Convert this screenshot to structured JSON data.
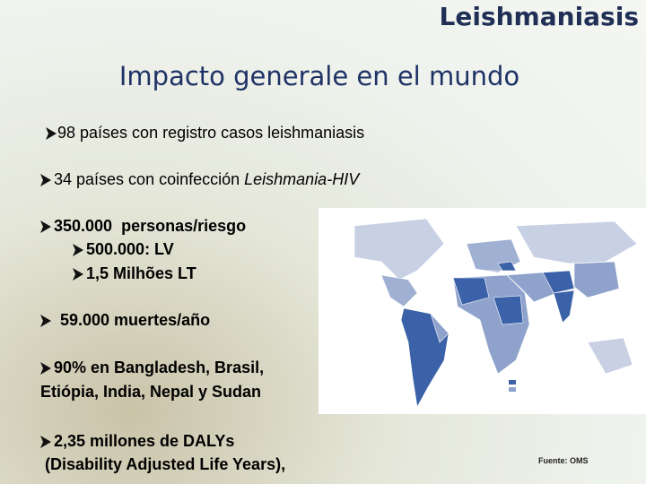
{
  "header": {
    "title": "Leishmaniasis",
    "subtitle": "Impacto generale en el mundo"
  },
  "bullets": [
    {
      "text": "98 países con registro casos leishmaniasis"
    },
    {
      "text": "34 países con coinfección ",
      "italic": "Leishmania-HIV"
    },
    {
      "text": "350.000  personas/riesgo",
      "sub": [
        "500.000: LV",
        "1,5 Milhões LT"
      ]
    },
    {
      "text": " 59.000 muertes/año"
    },
    {
      "lines": [
        "90% en Bangladesh, Brasil,",
        "Etiópia, India, Nepal y Sudan"
      ]
    },
    {
      "lines": [
        "2,35 millones de DALYs",
        " (Disability Adjusted Life Years),"
      ]
    }
  ],
  "map": {
    "source": "Fuente: OMS"
  }
}
